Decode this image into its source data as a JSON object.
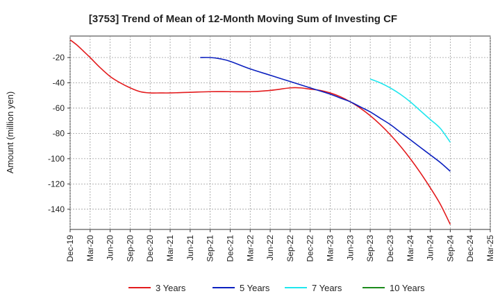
{
  "chart_data": {
    "type": "line",
    "title": "[3753]  Trend of Mean of 12-Month Moving Sum of Investing CF",
    "xlabel": "",
    "ylabel": "Amount (million yen)",
    "categories": [
      "Dec-19",
      "Mar-20",
      "Jun-20",
      "Sep-20",
      "Dec-20",
      "Mar-21",
      "Jun-21",
      "Sep-21",
      "Dec-21",
      "Mar-22",
      "Jun-22",
      "Sep-22",
      "Dec-22",
      "Mar-23",
      "Jun-23",
      "Sep-23",
      "Dec-23",
      "Mar-24",
      "Jun-24",
      "Sep-24",
      "Dec-24",
      "Mar-25"
    ],
    "ylim": [
      -156,
      -3
    ],
    "yticks": [
      -20,
      -40,
      -60,
      -80,
      -100,
      -120,
      -140
    ],
    "ytick_labels": [
      "-20",
      "-40",
      "-60",
      "-80",
      "-100",
      "-120",
      "-140"
    ],
    "grid": true,
    "legend_position": "bottom",
    "series": [
      {
        "name": "3 Years",
        "color": "#e31a1c",
        "x": [
          0,
          0.33,
          0.67,
          1,
          1.5,
          2,
          2.5,
          3,
          3.5,
          4,
          4.5,
          5,
          6,
          7,
          8,
          9,
          10,
          11,
          11.5,
          12,
          12.5,
          13,
          13.5,
          14,
          14.5,
          15,
          15.5,
          16,
          16.5,
          17,
          17.5,
          18,
          18.5,
          19
        ],
        "values": [
          -6,
          -10,
          -15,
          -20,
          -28,
          -35,
          -40,
          -44,
          -47,
          -48,
          -48,
          -48,
          -47.5,
          -47,
          -47,
          -47,
          -46,
          -44,
          -44,
          -45,
          -46,
          -48,
          -51,
          -55,
          -60,
          -66,
          -73,
          -81,
          -90,
          -100,
          -111,
          -123,
          -136,
          -152
        ]
      },
      {
        "name": "5 Years",
        "color": "#0a1fbf",
        "x": [
          6.5,
          7,
          7.5,
          8,
          9,
          10,
          11,
          12,
          13,
          13.5,
          14,
          14.5,
          15,
          15.5,
          16,
          16.5,
          17,
          17.5,
          18,
          18.5,
          19
        ],
        "values": [
          -20,
          -20,
          -21,
          -23,
          -29,
          -34,
          -39,
          -44,
          -49,
          -52,
          -55,
          -59,
          -63,
          -68,
          -73,
          -79,
          -85,
          -91,
          -97,
          -103,
          -110
        ]
      },
      {
        "name": "7 Years",
        "color": "#1ee6ee",
        "x": [
          15,
          15.5,
          16,
          16.5,
          17,
          17.5,
          18,
          18.5,
          19
        ],
        "values": [
          -37,
          -40,
          -44,
          -49,
          -55,
          -62,
          -69,
          -76,
          -87
        ]
      },
      {
        "name": "10 Years",
        "color": "#1a8a1a",
        "x": [],
        "values": []
      }
    ]
  }
}
